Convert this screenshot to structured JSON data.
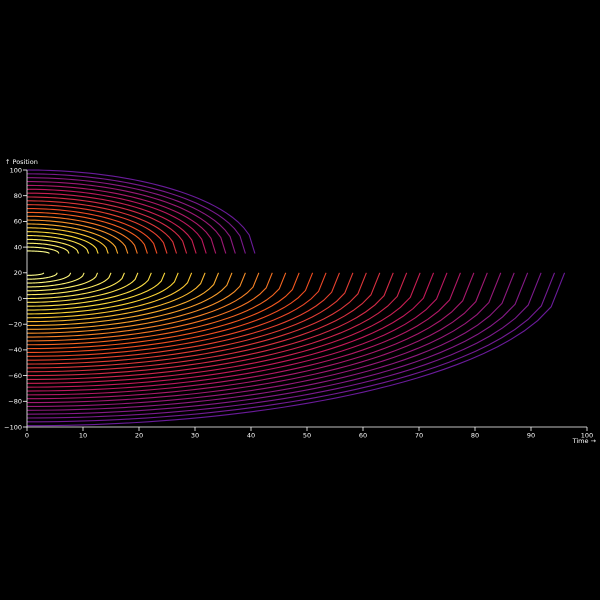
{
  "chart_data": {
    "type": "line",
    "title": "",
    "xlabel": "Time →",
    "ylabel": "↑ Position",
    "xlim": [
      0,
      100
    ],
    "ylim": [
      -100,
      100
    ],
    "x_ticks": [
      0,
      10,
      20,
      30,
      40,
      50,
      60,
      70,
      80,
      90,
      100
    ],
    "y_ticks": [
      -100,
      -80,
      -60,
      -40,
      -20,
      0,
      20,
      40,
      60,
      80,
      100
    ],
    "color_scale": [
      "#6a1b9a",
      "#c2185b",
      "#f4511e",
      "#fdd835",
      "#ffff8d"
    ],
    "grid": false,
    "legend": "none",
    "curve_families": [
      {
        "name": "",
        "apex_y": 35,
        "start_y_values": [
          37,
          40,
          43,
          46,
          49,
          52,
          55,
          58,
          61,
          64,
          67,
          70,
          73,
          76,
          79,
          82,
          85,
          88,
          91,
          94,
          97,
          100
        ],
        "end_x_values": [
          4,
          5.7,
          7.5,
          9.2,
          11,
          12.7,
          14.5,
          16.2,
          18,
          19.7,
          21.5,
          23.2,
          25,
          26.7,
          28.5,
          30.2,
          32,
          33.7,
          35.5,
          37.2,
          39,
          40.7
        ]
      },
      {
        "name": "",
        "apex_y": 20,
        "start_y_values": [
          18,
          15,
          12,
          9,
          6,
          3,
          0,
          -3,
          -6,
          -9,
          -12,
          -15,
          -18,
          -21,
          -24,
          -27,
          -30,
          -33,
          -36,
          -39,
          -42,
          -45,
          -48,
          -51,
          -54,
          -57,
          -60,
          -63,
          -66,
          -69,
          -72,
          -75,
          -78,
          -81,
          -84,
          -87,
          -90,
          -93,
          -96,
          -99
        ],
        "end_x_values": [
          3,
          5.4,
          7.8,
          10.2,
          12.6,
          15,
          17.4,
          19.8,
          22.2,
          24.6,
          27,
          29.4,
          31.8,
          34.2,
          36.6,
          39,
          41.4,
          43.8,
          46.2,
          48.6,
          51,
          53.4,
          55.8,
          58.2,
          60.6,
          63,
          65.4,
          67.8,
          70.2,
          72.6,
          75,
          77.4,
          79.8,
          82.2,
          84.6,
          87,
          89.4,
          91.8,
          94.2,
          96
        ]
      }
    ]
  }
}
